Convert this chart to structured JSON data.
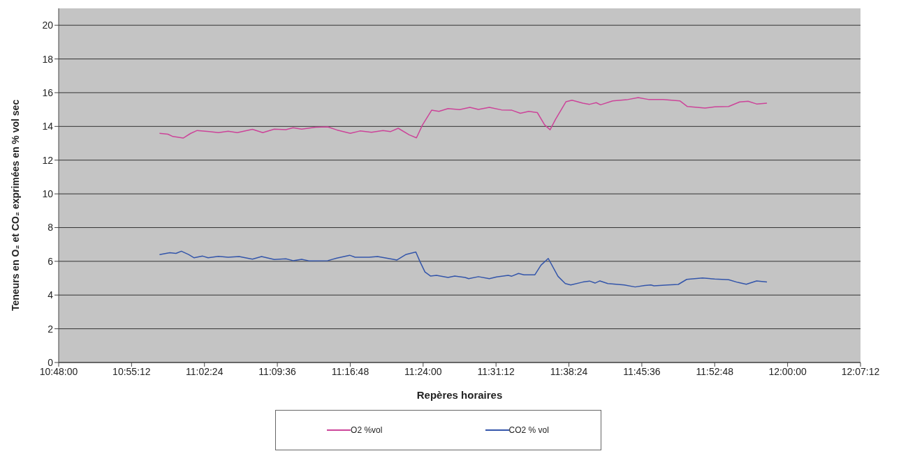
{
  "chart_data": {
    "type": "line",
    "xlabel": "Repères horaires",
    "ylabel": "Teneurs en O₂ et CO₂ exprimées en % vol sec",
    "xlim": [
      10.8,
      12.12
    ],
    "xticks": [
      {
        "value": 10.8,
        "label": "10:48:00"
      },
      {
        "value": 10.92,
        "label": "10:55:12"
      },
      {
        "value": 11.04,
        "label": "11:02:24"
      },
      {
        "value": 11.16,
        "label": "11:09:36"
      },
      {
        "value": 11.28,
        "label": "11:16:48"
      },
      {
        "value": 11.4,
        "label": "11:24:00"
      },
      {
        "value": 11.52,
        "label": "11:31:12"
      },
      {
        "value": 11.64,
        "label": "11:38:24"
      },
      {
        "value": 11.76,
        "label": "11:45:36"
      },
      {
        "value": 11.88,
        "label": "11:52:48"
      },
      {
        "value": 12.0,
        "label": "12:00:00"
      },
      {
        "value": 12.12,
        "label": "12:07:12"
      }
    ],
    "ylim": [
      0,
      21
    ],
    "yticks": [
      0,
      2,
      4,
      6,
      8,
      10,
      12,
      14,
      16,
      18,
      20
    ],
    "grid": "y",
    "legend": "bottom",
    "marker": "none",
    "line_style": "solid",
    "series": [
      {
        "name": "O2 %vol",
        "color": "#cc4499",
        "x": [
          10.966,
          10.98,
          10.988,
          11.005,
          11.017,
          11.028,
          11.048,
          11.063,
          11.079,
          11.094,
          11.119,
          11.136,
          11.155,
          11.174,
          11.186,
          11.2,
          11.223,
          11.243,
          11.258,
          11.28,
          11.296,
          11.315,
          11.334,
          11.346,
          11.359,
          11.377,
          11.389,
          11.399,
          11.414,
          11.426,
          11.441,
          11.46,
          11.477,
          11.491,
          11.509,
          11.529,
          11.546,
          11.56,
          11.574,
          11.588,
          11.6,
          11.609,
          11.618,
          11.635,
          11.645,
          11.663,
          11.674,
          11.685,
          11.692,
          11.712,
          11.735,
          11.754,
          11.772,
          11.795,
          11.823,
          11.835,
          11.864,
          11.88,
          11.903,
          11.921,
          11.935,
          11.949,
          11.966
        ],
        "values": [
          13.59,
          13.54,
          13.4,
          13.31,
          13.58,
          13.76,
          13.69,
          13.63,
          13.71,
          13.63,
          13.83,
          13.63,
          13.84,
          13.81,
          13.92,
          13.84,
          13.95,
          13.97,
          13.79,
          13.59,
          13.73,
          13.65,
          13.76,
          13.69,
          13.89,
          13.5,
          13.32,
          14.09,
          14.96,
          14.89,
          15.06,
          15.0,
          15.13,
          15.01,
          15.13,
          14.98,
          14.96,
          14.78,
          14.89,
          14.82,
          14.09,
          13.8,
          14.42,
          15.46,
          15.55,
          15.38,
          15.31,
          15.41,
          15.28,
          15.51,
          15.58,
          15.71,
          15.59,
          15.59,
          15.51,
          15.18,
          15.09,
          15.16,
          15.18,
          15.45,
          15.49,
          15.33,
          15.38
        ]
      },
      {
        "name": "CO2 % vol",
        "color": "#3355aa",
        "x": [
          10.966,
          10.983,
          10.993,
          11.002,
          11.014,
          11.023,
          11.037,
          11.046,
          11.063,
          11.079,
          11.097,
          11.119,
          11.134,
          11.155,
          11.174,
          11.186,
          11.2,
          11.212,
          11.243,
          11.258,
          11.279,
          11.288,
          11.311,
          11.325,
          11.338,
          11.357,
          11.372,
          11.388,
          11.395,
          11.403,
          11.412,
          11.422,
          11.441,
          11.452,
          11.469,
          11.475,
          11.491,
          11.509,
          11.521,
          11.54,
          11.546,
          11.557,
          11.566,
          11.584,
          11.594,
          11.606,
          11.622,
          11.634,
          11.643,
          11.663,
          11.674,
          11.683,
          11.691,
          11.704,
          11.731,
          11.749,
          11.765,
          11.775,
          11.78,
          11.803,
          11.82,
          11.834,
          11.86,
          11.88,
          11.903,
          11.918,
          11.932,
          11.949,
          11.966
        ],
        "values": [
          6.4,
          6.51,
          6.47,
          6.6,
          6.4,
          6.21,
          6.31,
          6.21,
          6.29,
          6.24,
          6.28,
          6.13,
          6.28,
          6.11,
          6.15,
          6.04,
          6.12,
          6.03,
          6.04,
          6.19,
          6.36,
          6.24,
          6.24,
          6.28,
          6.2,
          6.08,
          6.41,
          6.55,
          5.97,
          5.37,
          5.13,
          5.17,
          5.04,
          5.13,
          5.04,
          4.97,
          5.09,
          4.97,
          5.07,
          5.17,
          5.12,
          5.28,
          5.2,
          5.2,
          5.77,
          6.17,
          5.11,
          4.68,
          4.6,
          4.77,
          4.83,
          4.71,
          4.84,
          4.68,
          4.6,
          4.48,
          4.57,
          4.6,
          4.55,
          4.6,
          4.63,
          4.93,
          5.01,
          4.95,
          4.91,
          4.75,
          4.64,
          4.84,
          4.77
        ]
      }
    ]
  }
}
